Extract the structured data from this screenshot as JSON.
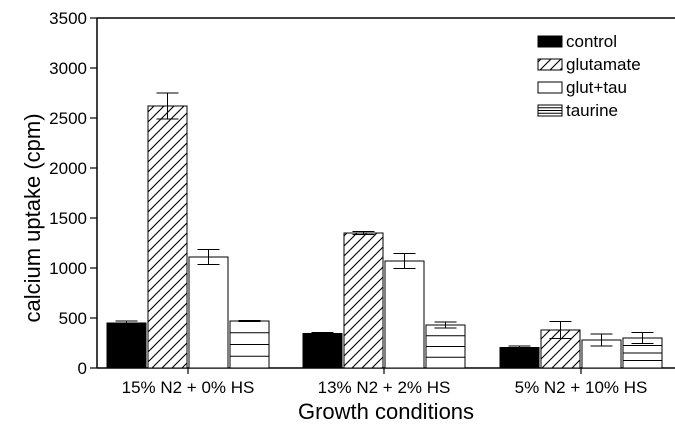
{
  "chart_data": {
    "type": "bar",
    "title": "",
    "xlabel": "Growth conditions",
    "ylabel": "calcium uptake (cpm)",
    "ylim": [
      0,
      3500
    ],
    "yticks": [
      0,
      500,
      1000,
      1500,
      2000,
      2500,
      3000,
      3500
    ],
    "categories": [
      "15% N2 + 0% HS",
      "13% N2 + 2% HS",
      "5% N2 + 10% HS"
    ],
    "series": [
      {
        "name": "control",
        "fill": "solid-black",
        "values": [
          450,
          345,
          205
        ],
        "errors": [
          20,
          10,
          15
        ]
      },
      {
        "name": "glutamate",
        "fill": "diagonal-hatch",
        "values": [
          2620,
          1350,
          380
        ],
        "errors": [
          130,
          15,
          85
        ]
      },
      {
        "name": "glut+tau",
        "fill": "white",
        "values": [
          1110,
          1070,
          280
        ],
        "errors": [
          75,
          75,
          60
        ]
      },
      {
        "name": "taurine",
        "fill": "horizontal-lines",
        "values": [
          470,
          430,
          300
        ],
        "errors": [
          5,
          30,
          55
        ]
      }
    ],
    "legend_position": "top-right",
    "grid": false,
    "colors": {
      "bar_outline": "#000000",
      "solid": "#000000",
      "background": "#ffffff"
    }
  }
}
